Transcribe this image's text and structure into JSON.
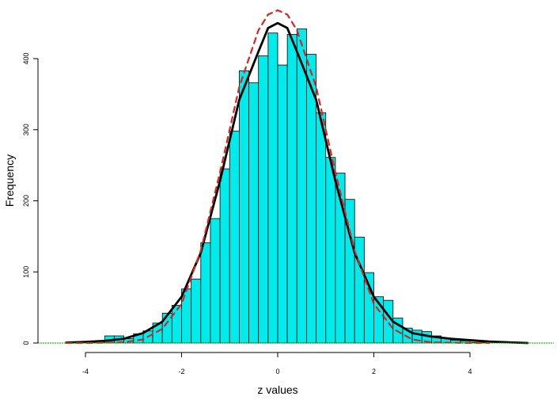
{
  "chart_data": {
    "type": "bar",
    "title": "",
    "xlabel": "z values",
    "ylabel": "Frequency",
    "xlim": [
      -4.6,
      5.7
    ],
    "ylim": [
      0,
      460
    ],
    "x_ticks": [
      -4,
      -2,
      0,
      2,
      4
    ],
    "y_ticks": [
      0,
      100,
      200,
      300,
      400
    ],
    "bin_width": 0.2,
    "bins_start": -4.4,
    "counts": [
      1,
      1,
      2,
      3,
      10,
      10,
      6,
      13,
      17,
      28,
      42,
      53,
      76,
      90,
      141,
      175,
      245,
      298,
      383,
      366,
      404,
      436,
      391,
      434,
      442,
      406,
      324,
      261,
      239,
      202,
      149,
      99,
      65,
      60,
      35,
      21,
      18,
      16,
      10,
      7,
      4,
      3,
      1,
      1
    ],
    "series": [
      {
        "name": "",
        "style": "solid",
        "color": "#000000",
        "x": [
          -4.4,
          -4.0,
          -3.6,
          -3.2,
          -2.8,
          -2.4,
          -2.0,
          -1.6,
          -1.2,
          -0.8,
          -0.4,
          -0.2,
          0.0,
          0.2,
          0.4,
          0.8,
          1.2,
          1.6,
          2.0,
          2.4,
          2.8,
          3.2,
          3.6,
          4.0,
          4.4,
          4.8,
          5.2
        ],
        "y": [
          0.5,
          1.5,
          3,
          6,
          14,
          30,
          65,
          127,
          228,
          342,
          410,
          443,
          450,
          443,
          410,
          342,
          228,
          127,
          65,
          30,
          14,
          9,
          6,
          4,
          2,
          1,
          0
        ]
      },
      {
        "name": "",
        "style": "dashed",
        "color": "#dd2222",
        "x": [
          -4.4,
          -4.0,
          -3.6,
          -3.2,
          -2.8,
          -2.4,
          -2.0,
          -1.6,
          -1.2,
          -0.8,
          -0.4,
          -0.2,
          0.0,
          0.2,
          0.4,
          0.8,
          1.2,
          1.6,
          2.0,
          2.4,
          2.8,
          3.2,
          3.6,
          4.0,
          4.4
        ],
        "y": [
          0,
          0,
          0.5,
          1,
          5,
          20,
          55,
          130,
          240,
          360,
          440,
          462,
          468,
          462,
          440,
          360,
          240,
          130,
          55,
          20,
          5,
          1,
          0.5,
          0,
          0
        ]
      }
    ],
    "colors": {
      "bar_fill": "#00ecec",
      "bar_stroke": "#000000",
      "baseline": "#00aa00"
    },
    "grid": false,
    "legend": "none"
  }
}
